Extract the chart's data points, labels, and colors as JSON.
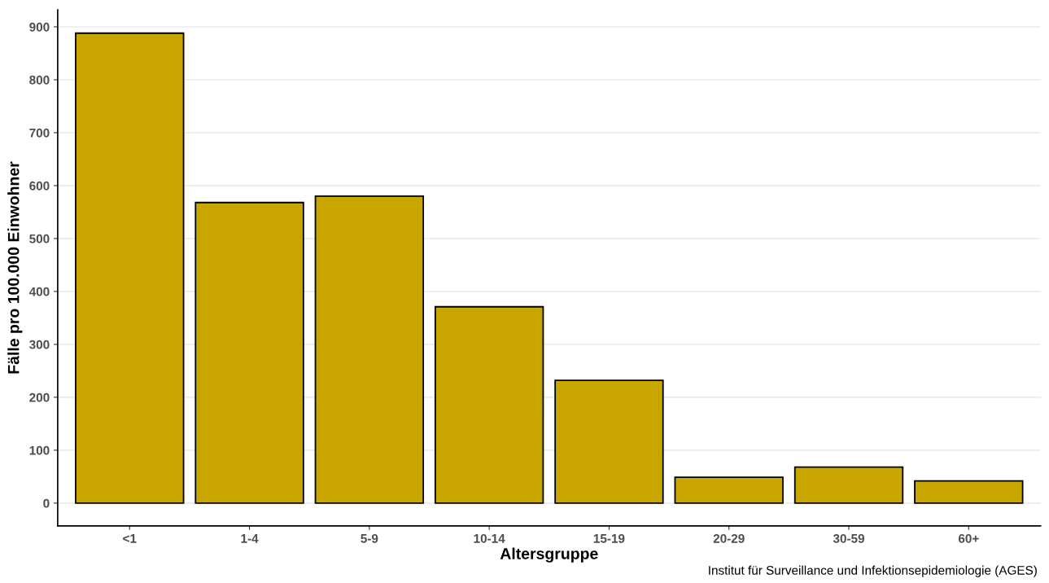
{
  "chart_data": {
    "type": "bar",
    "xlabel": "Altersgruppe",
    "ylabel": "Fälle pro 100.000 Einwohner",
    "categories": [
      "<1",
      "1-4",
      "5-9",
      "10-14",
      "15-19",
      "20-29",
      "30-59",
      "60+"
    ],
    "values": [
      888,
      568,
      580,
      371,
      232,
      49,
      68,
      42
    ],
    "color": "#c9a500",
    "ylim": [
      -43,
      932
    ],
    "yticks": [
      0,
      100,
      200,
      300,
      400,
      500,
      600,
      700,
      800,
      900
    ],
    "grid": "y",
    "annotations": [
      "Institut für Surveillance und Infektionsepidemiologie (AGES)"
    ]
  }
}
